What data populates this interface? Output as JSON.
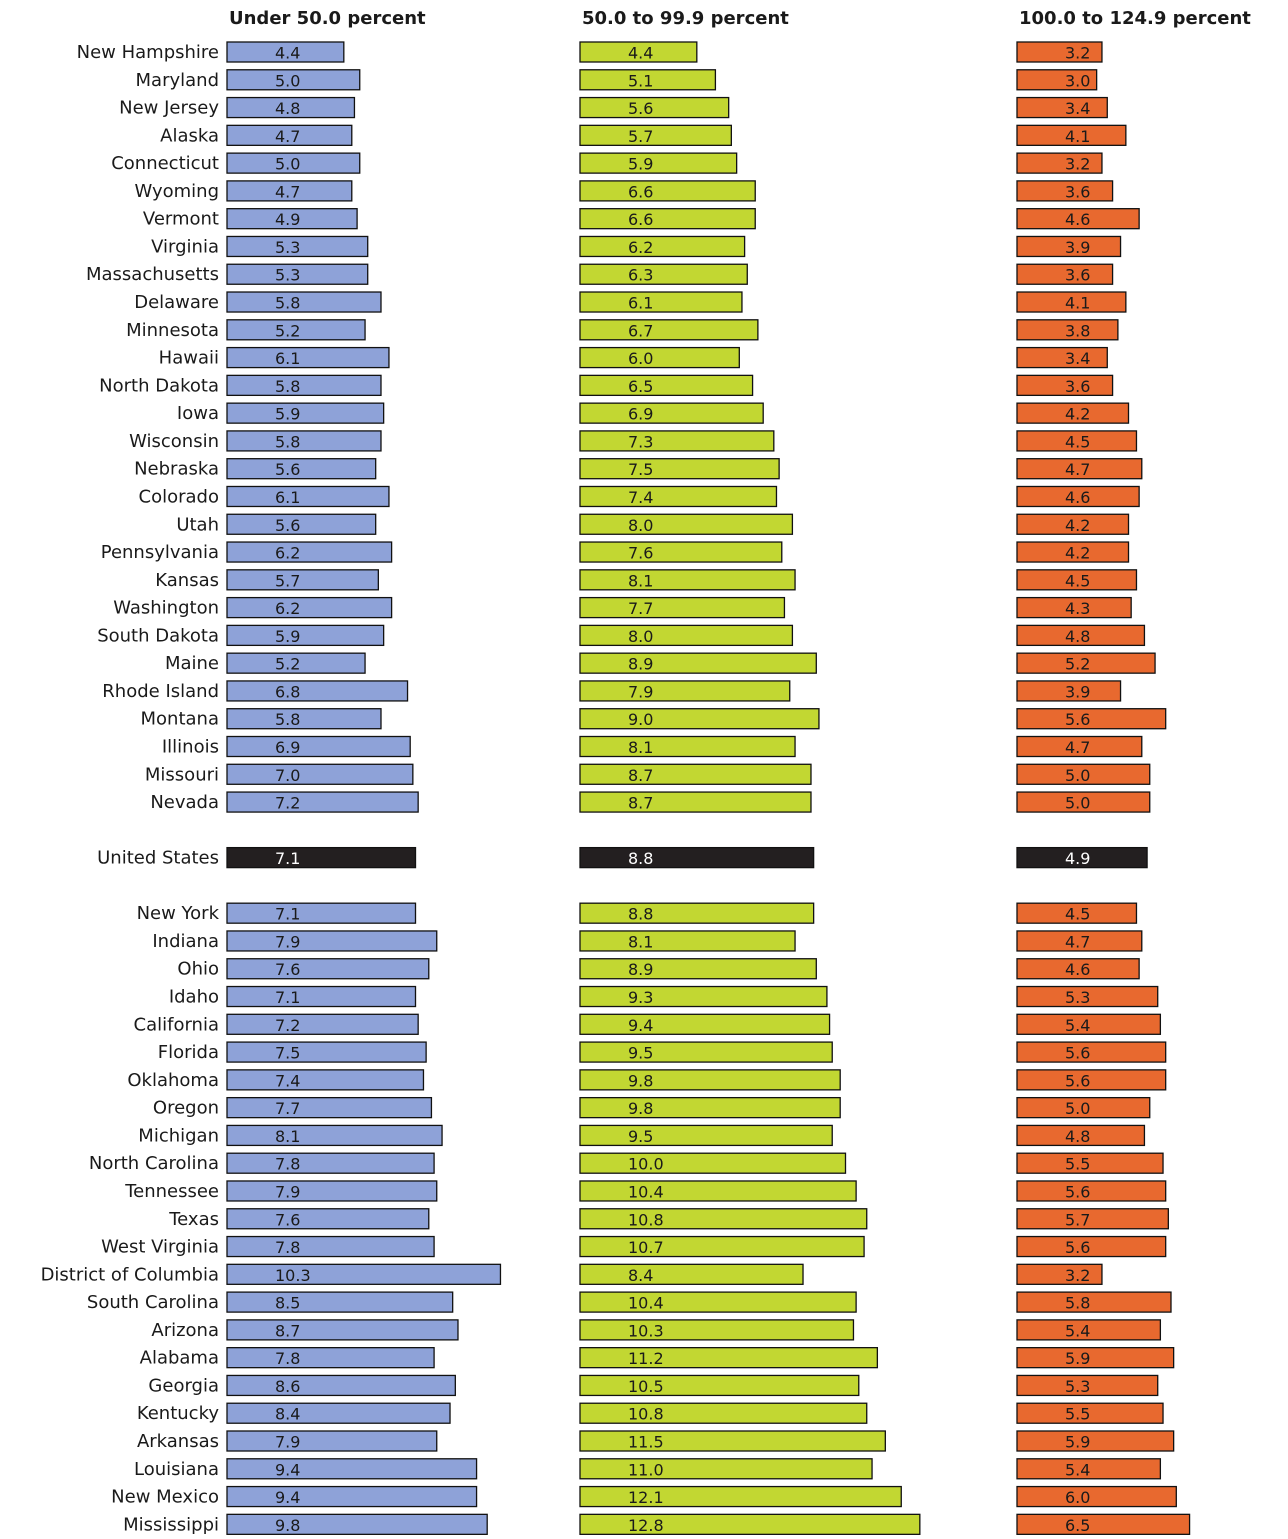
{
  "chart_data": {
    "type": "bar",
    "orientation": "horizontal",
    "categories": [
      "New Hampshire",
      "Maryland",
      "New Jersey",
      "Alaska",
      "Connecticut",
      "Wyoming",
      "Vermont",
      "Virginia",
      "Massachusetts",
      "Delaware",
      "Minnesota",
      "Hawaii",
      "North Dakota",
      "Iowa",
      "Wisconsin",
      "Nebraska",
      "Colorado",
      "Utah",
      "Pennsylvania",
      "Kansas",
      "Washington",
      "South Dakota",
      "Maine",
      "Rhode Island",
      "Montana",
      "Illinois",
      "Missouri",
      "Nevada",
      "United States",
      "New York",
      "Indiana",
      "Ohio",
      "Idaho",
      "California",
      "Florida",
      "Oklahoma",
      "Oregon",
      "Michigan",
      "North Carolina",
      "Tennessee",
      "Texas",
      "West Virginia",
      "District of Columbia",
      "South Carolina",
      "Arizona",
      "Alabama",
      "Georgia",
      "Kentucky",
      "Arkansas",
      "Louisiana",
      "New Mexico",
      "Mississippi"
    ],
    "highlight": {
      "index": 28,
      "color": "#231f20"
    },
    "series": [
      {
        "name": "Under 50.0 percent",
        "color": "#8ea2d8",
        "values": [
          4.4,
          5.0,
          4.8,
          4.7,
          5.0,
          4.7,
          4.9,
          5.3,
          5.3,
          5.8,
          5.2,
          6.1,
          5.8,
          5.9,
          5.8,
          5.6,
          6.1,
          5.6,
          6.2,
          5.7,
          6.2,
          5.9,
          5.2,
          6.8,
          5.8,
          6.9,
          7.0,
          7.2,
          7.1,
          7.1,
          7.9,
          7.6,
          7.1,
          7.2,
          7.5,
          7.4,
          7.7,
          8.1,
          7.8,
          7.9,
          7.6,
          7.8,
          10.3,
          8.5,
          8.7,
          7.8,
          8.6,
          8.4,
          7.9,
          9.4,
          9.4,
          9.8
        ],
        "value_labels": [
          "4.4",
          "5.0",
          "4.8",
          "4.7",
          "5.0",
          "4.7",
          "4.9",
          "5.3",
          "5.3",
          "5.8",
          "5.2",
          "6.1",
          "5.8",
          "5.9",
          "5.8",
          "5.6",
          "6.1",
          "5.6",
          "6.2",
          "5.7",
          "6.2",
          "5.9",
          "5.2",
          "6.8",
          "5.8",
          "6.9",
          "7.0",
          "7.2",
          "7.1",
          "7.1",
          "7.9",
          "7.6",
          "7.1",
          "7.2",
          "7.5",
          "7.4",
          "7.7",
          "8.1",
          "7.8",
          "7.9",
          "7.6",
          "7.8",
          "10.3",
          "8.5",
          "8.7",
          "7.8",
          "8.6",
          "8.4",
          "7.9",
          "9.4",
          "9.4",
          "9.8"
        ]
      },
      {
        "name": "50.0 to 99.9 percent",
        "color": "#c2d732",
        "values": [
          4.4,
          5.1,
          5.6,
          5.7,
          5.9,
          6.6,
          6.6,
          6.2,
          6.3,
          6.1,
          6.7,
          6.0,
          6.5,
          6.9,
          7.3,
          7.5,
          7.4,
          8.0,
          7.6,
          8.1,
          7.7,
          8.0,
          8.9,
          7.9,
          9.0,
          8.1,
          8.7,
          8.7,
          8.8,
          8.8,
          8.1,
          8.9,
          9.3,
          9.4,
          9.5,
          9.8,
          9.8,
          9.5,
          10.0,
          10.4,
          10.8,
          10.7,
          8.4,
          10.4,
          10.3,
          11.2,
          10.5,
          10.8,
          11.5,
          11.0,
          12.1,
          12.8
        ],
        "value_labels": [
          "4.4",
          "5.1",
          "5.6",
          "5.7",
          "5.9",
          "6.6",
          "6.6",
          "6.2",
          "6.3",
          "6.1",
          "6.7",
          "6.0",
          "6.5",
          "6.9",
          "7.3",
          "7.5",
          "7.4",
          "8.0",
          "7.6",
          "8.1",
          "7.7",
          "8.0",
          "8.9",
          "7.9",
          "9.0",
          "8.1",
          "8.7",
          "8.7",
          "8.8",
          "8.8",
          "8.1",
          "8.9",
          "9.3",
          "9.4",
          "9.5",
          "9.8",
          "9.8",
          "9.5",
          "10.0",
          "10.4",
          "10.8",
          "10.7",
          "8.4",
          "10.4",
          "10.3",
          "11.2",
          "10.5",
          "10.8",
          "11.5",
          "11.0",
          "12.1",
          "12.8"
        ]
      },
      {
        "name": "100.0 to 124.9 percent",
        "color": "#e8692f",
        "values": [
          3.2,
          3.0,
          3.4,
          4.1,
          3.2,
          3.6,
          4.6,
          3.9,
          3.6,
          4.1,
          3.8,
          3.4,
          3.6,
          4.2,
          4.5,
          4.7,
          4.6,
          4.2,
          4.2,
          4.5,
          4.3,
          4.8,
          5.2,
          3.9,
          5.6,
          4.7,
          5.0,
          5.0,
          4.9,
          4.5,
          4.7,
          4.6,
          5.3,
          5.4,
          5.6,
          5.6,
          5.0,
          4.8,
          5.5,
          5.6,
          5.7,
          5.6,
          3.2,
          5.8,
          5.4,
          5.9,
          5.3,
          5.5,
          5.9,
          5.4,
          6.0,
          6.5
        ],
        "value_labels": [
          "3.2",
          "3.0",
          "3.4",
          "4.1",
          "3.2",
          "3.6",
          "4.6",
          "3.9",
          "3.6",
          "4.1",
          "3.8",
          "3.4",
          "3.6",
          "4.2",
          "4.5",
          "4.7",
          "4.6",
          "4.2",
          "4.2",
          "4.5",
          "4.3",
          "4.8",
          "5.2",
          "3.9",
          "5.6",
          "4.7",
          "5.0",
          "5.0",
          "4.9",
          "4.5",
          "4.7",
          "4.6",
          "5.3",
          "5.4",
          "5.6",
          "5.6",
          "5.0",
          "4.8",
          "5.5",
          "5.6",
          "5.7",
          "5.6",
          "3.2",
          "5.8",
          "5.4",
          "5.9",
          "5.3",
          "5.5",
          "5.9",
          "5.4",
          "6.0",
          "6.5"
        ]
      }
    ]
  }
}
